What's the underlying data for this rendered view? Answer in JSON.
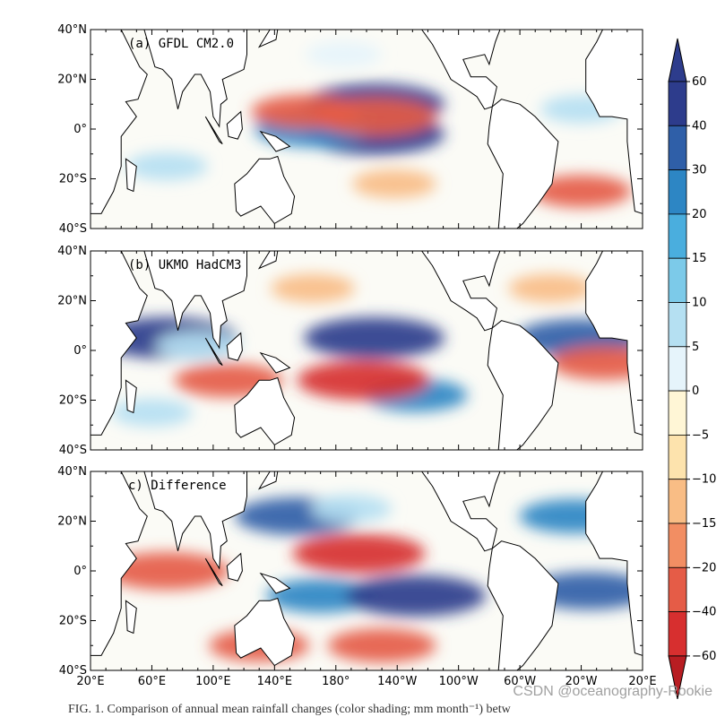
{
  "chart_data": [
    {
      "type": "heatmap",
      "panel_label": "(a) GFDL CM2.0",
      "ylabels": [
        "40°N",
        "20°N",
        "0°",
        "20°S",
        "40°S"
      ],
      "ylim": [
        -40,
        40
      ],
      "xlim": [
        20,
        380
      ],
      "blobs": [
        {
          "lon": 205,
          "lat": 10,
          "value": 45
        },
        {
          "lon": 205,
          "lat": -2,
          "value": 45
        },
        {
          "lon": 165,
          "lat": 0,
          "value": 30
        },
        {
          "lon": 205,
          "lat": 5,
          "value": -35
        },
        {
          "lon": 160,
          "lat": 7,
          "value": -25
        },
        {
          "lon": 218,
          "lat": -22,
          "value": -10
        },
        {
          "lon": 340,
          "lat": -25,
          "value": -20
        },
        {
          "lon": 70,
          "lat": -15,
          "value": 8
        },
        {
          "lon": 340,
          "lat": 8,
          "value": 8
        },
        {
          "lon": 185,
          "lat": 30,
          "value": 5
        }
      ]
    },
    {
      "type": "heatmap",
      "panel_label": "(b) UKMO HadCM3",
      "ylabels": [
        "40°N",
        "20°N",
        "0°",
        "20°S",
        "40°S"
      ],
      "ylim": [
        -40,
        40
      ],
      "xlim": [
        20,
        380
      ],
      "blobs": [
        {
          "lon": 205,
          "lat": 5,
          "value": 45
        },
        {
          "lon": 70,
          "lat": 5,
          "value": 45
        },
        {
          "lon": 232,
          "lat": -18,
          "value": 22
        },
        {
          "lon": 338,
          "lat": 5,
          "value": 35
        },
        {
          "lon": 198,
          "lat": -12,
          "value": -40
        },
        {
          "lon": 355,
          "lat": -5,
          "value": -25
        },
        {
          "lon": 110,
          "lat": -12,
          "value": -25
        },
        {
          "lon": 90,
          "lat": 2,
          "value": 10
        },
        {
          "lon": 165,
          "lat": 25,
          "value": -10
        },
        {
          "lon": 320,
          "lat": 25,
          "value": -10
        },
        {
          "lon": 60,
          "lat": -25,
          "value": 8
        }
      ]
    },
    {
      "type": "heatmap",
      "panel_label": "c) Difference",
      "ylabels": [
        "40°N",
        "20°N",
        "0°",
        "20°S",
        "40°S"
      ],
      "xlabels": [
        "20°E",
        "60°E",
        "100°E",
        "140°E",
        "180°",
        "140°W",
        "100°W",
        "60°W",
        "20°W",
        "20°E"
      ],
      "ylim": [
        -40,
        40
      ],
      "xlim": [
        20,
        380
      ],
      "blobs": [
        {
          "lon": 195,
          "lat": 7,
          "value": -40
        },
        {
          "lon": 70,
          "lat": 0,
          "value": -35
        },
        {
          "lon": 130,
          "lat": -30,
          "value": -20
        },
        {
          "lon": 210,
          "lat": -30,
          "value": -25
        },
        {
          "lon": 155,
          "lat": 22,
          "value": 35
        },
        {
          "lon": 170,
          "lat": -10,
          "value": 25
        },
        {
          "lon": 232,
          "lat": -10,
          "value": 45
        },
        {
          "lon": 345,
          "lat": -8,
          "value": 35
        },
        {
          "lon": 335,
          "lat": 22,
          "value": 25
        },
        {
          "lon": 190,
          "lat": 25,
          "value": 8
        }
      ]
    }
  ],
  "colorbar": {
    "labels": [
      "60",
      "40",
      "30",
      "20",
      "15",
      "10",
      "5",
      "0",
      "−5",
      "−10",
      "−15",
      "−20",
      "−40",
      "−60"
    ],
    "colors": [
      "#2d3c8c",
      "#2f5fa8",
      "#2d86c4",
      "#4aaede",
      "#7ccae9",
      "#b5e0f2",
      "#e6f4fb",
      "#fff6d6",
      "#fde3ad",
      "#f9bd85",
      "#f28e63",
      "#e55c47",
      "#d72f2f"
    ],
    "top_color": "#2d3c8c",
    "bottom_color": "#b81d22"
  },
  "caption": "FIG. 1. Comparison of annual mean rainfall changes (color shading; mm month⁻¹) betw",
  "watermark": "CSDN @oceanography-Rookie"
}
